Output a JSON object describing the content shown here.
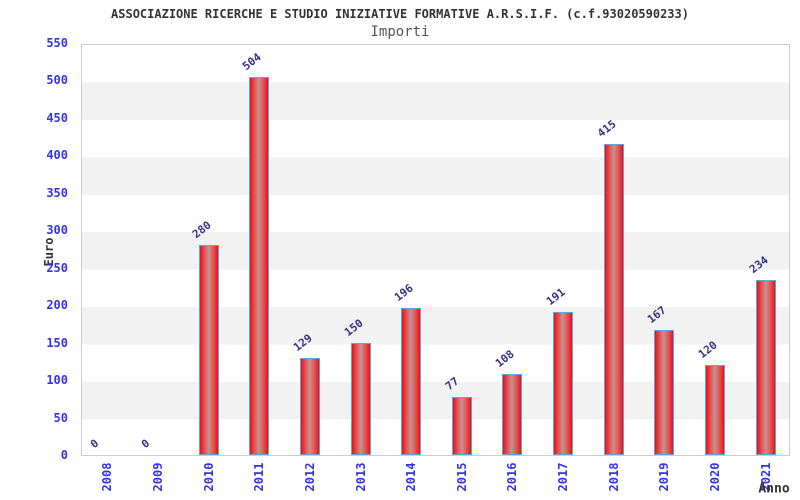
{
  "chart_data": {
    "type": "bar",
    "title": "ASSOCIAZIONE RICERCHE E STUDIO INIZIATIVE FORMATIVE A.R.S.I.F. (c.f.93020590233)",
    "subtitle": "Importi",
    "xlabel": "Anno",
    "ylabel": "Euro",
    "categories": [
      "2008",
      "2009",
      "2010",
      "2011",
      "2012",
      "2013",
      "2014",
      "2015",
      "2016",
      "2017",
      "2018",
      "2019",
      "2020",
      "2021"
    ],
    "values": [
      0,
      0,
      280,
      504,
      129,
      150,
      196,
      77,
      108,
      191,
      415,
      167,
      120,
      234
    ],
    "ylim": [
      0,
      550
    ],
    "ytick_step": 50,
    "yticks": [
      "0",
      "50",
      "100",
      "150",
      "200",
      "250",
      "300",
      "350",
      "400",
      "450",
      "500",
      "550"
    ],
    "grid": "horizontal-bands",
    "legend": "none",
    "colors": {
      "bar_edge_fill": "#ee0f0f",
      "bar_center_fill": "#c69090",
      "bar_border": "#58a6e8",
      "tick_label": "#3333ee",
      "value_label": "#333388",
      "title_text": "#333333",
      "subtitle_text": "#555555",
      "band_light": "#ffffff",
      "band_dark": "#f2f2f2",
      "plot_border": "#cccccc"
    }
  }
}
